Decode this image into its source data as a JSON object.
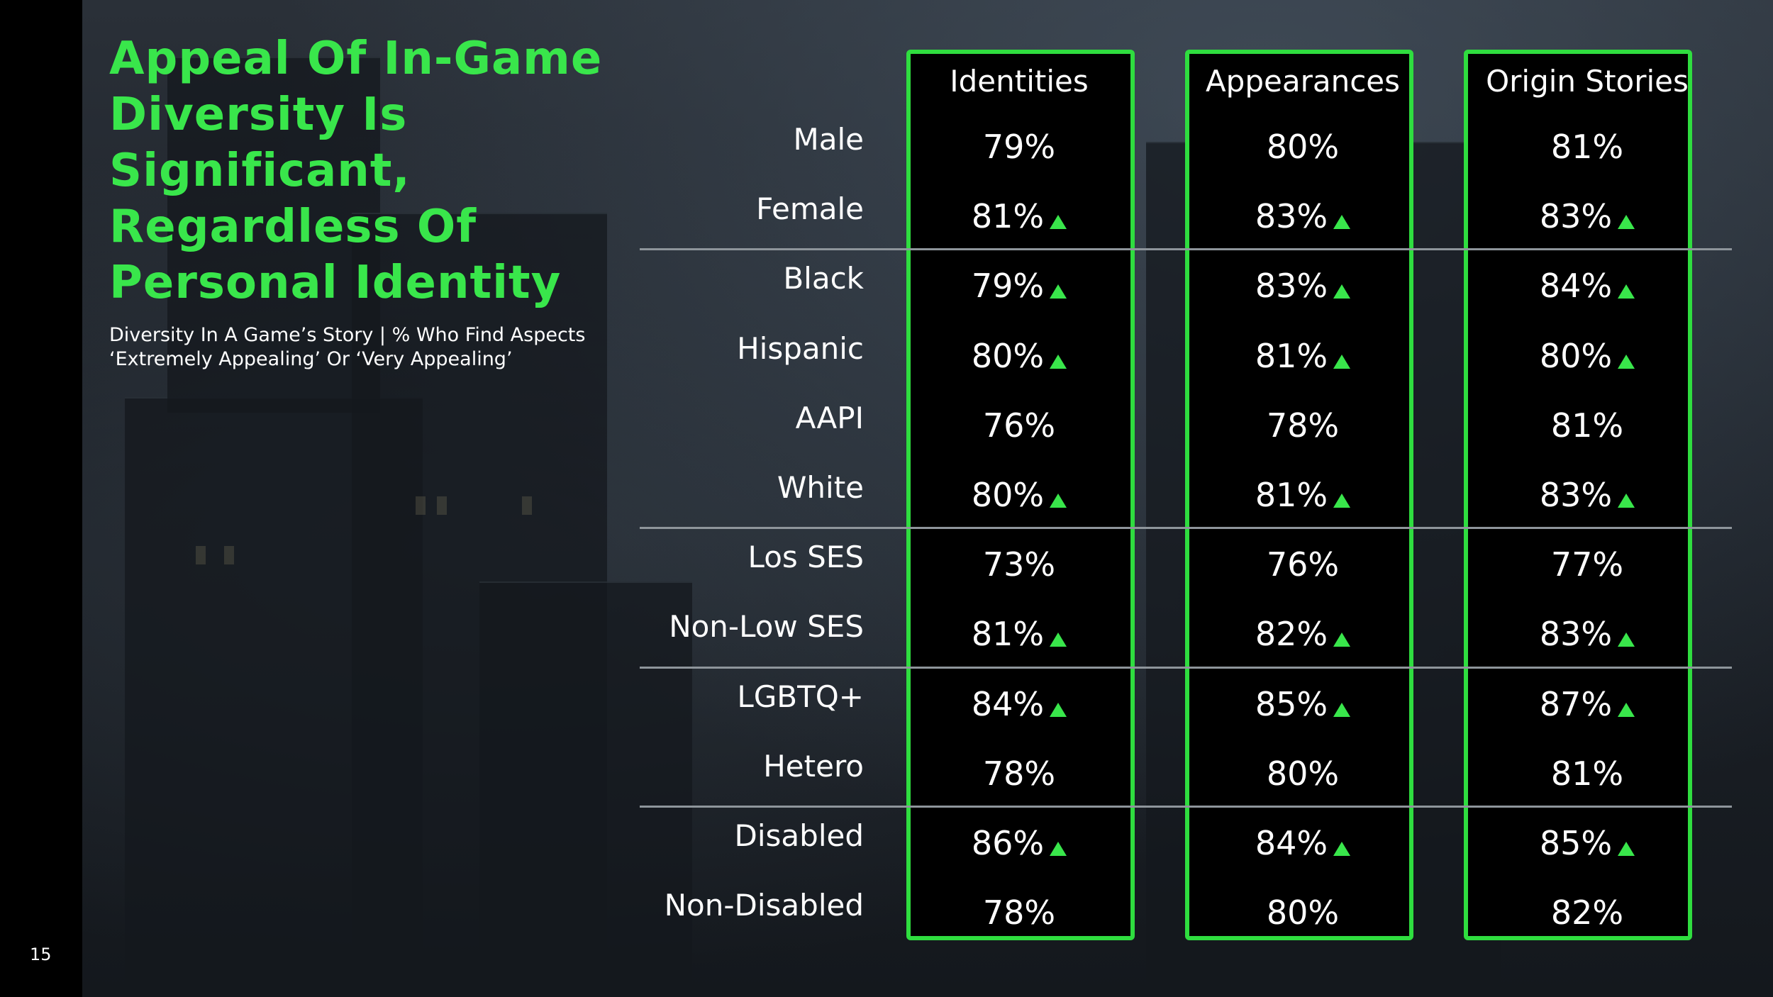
{
  "page_number": "15",
  "title": "Appeal Of In-Game Diversity Is Significant, Regardless Of Personal Identity",
  "subtitle_line1": "Diversity In A Game’s Story | % Who Find Aspects",
  "subtitle_line2": "‘Extremely Appealing’ Or ‘Very Appealing’",
  "colors": {
    "accent": "#39e64b",
    "box_border": "#2fdd3f",
    "text": "#ffffff",
    "divider": "#8e959b"
  },
  "chart_data": {
    "type": "table",
    "title": "Appeal Of In-Game Diversity Is Significant, Regardless Of Personal Identity",
    "columns": [
      "Identities",
      "Appearances",
      "Origin Stories"
    ],
    "rows": [
      {
        "label": "Male",
        "values": [
          "79%",
          "80%",
          "81%"
        ],
        "up": [
          false,
          false,
          false
        ]
      },
      {
        "label": "Female",
        "values": [
          "81%",
          "83%",
          "83%"
        ],
        "up": [
          true,
          true,
          true
        ]
      },
      {
        "label": "Black",
        "values": [
          "79%",
          "83%",
          "84%"
        ],
        "up": [
          true,
          true,
          true
        ]
      },
      {
        "label": "Hispanic",
        "values": [
          "80%",
          "81%",
          "80%"
        ],
        "up": [
          true,
          true,
          true
        ]
      },
      {
        "label": "AAPI",
        "values": [
          "76%",
          "78%",
          "81%"
        ],
        "up": [
          false,
          false,
          false
        ]
      },
      {
        "label": "White",
        "values": [
          "80%",
          "81%",
          "83%"
        ],
        "up": [
          true,
          true,
          true
        ]
      },
      {
        "label": "Los SES",
        "values": [
          "73%",
          "76%",
          "77%"
        ],
        "up": [
          false,
          false,
          false
        ]
      },
      {
        "label": "Non-Low SES",
        "values": [
          "81%",
          "82%",
          "83%"
        ],
        "up": [
          true,
          true,
          true
        ]
      },
      {
        "label": "LGBTQ+",
        "values": [
          "84%",
          "85%",
          "87%"
        ],
        "up": [
          true,
          true,
          true
        ]
      },
      {
        "label": "Hetero",
        "values": [
          "78%",
          "80%",
          "81%"
        ],
        "up": [
          false,
          false,
          false
        ]
      },
      {
        "label": "Disabled",
        "values": [
          "86%",
          "84%",
          "85%"
        ],
        "up": [
          true,
          true,
          true
        ]
      },
      {
        "label": "Non-Disabled",
        "values": [
          "78%",
          "80%",
          "82%"
        ],
        "up": [
          false,
          false,
          false
        ]
      }
    ],
    "group_breaks_after": [
      1,
      5,
      7,
      9
    ]
  }
}
